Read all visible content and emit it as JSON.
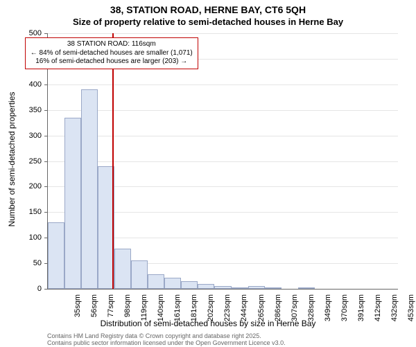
{
  "title_main": "38, STATION ROAD, HERNE BAY, CT6 5QH",
  "title_sub": "Size of property relative to semi-detached houses in Herne Bay",
  "ylabel": "Number of semi-detached properties",
  "xlabel": "Distribution of semi-detached houses by size in Herne Bay",
  "attribution_line1": "Contains HM Land Registry data © Crown copyright and database right 2025.",
  "attribution_line2": "Contains public sector information licensed under the Open Government Licence v3.0.",
  "annotation": {
    "line1": "38 STATION ROAD: 116sqm",
    "line2": "← 84% of semi-detached houses are smaller (1,071)",
    "line3": "16% of semi-detached houses are larger (203) →",
    "ref_value": 116,
    "border_color": "#c00000"
  },
  "chart": {
    "type": "histogram",
    "ylim": [
      0,
      500
    ],
    "ytick_step": 50,
    "bar_fill": "#dbe4f3",
    "bar_border": "#9aa8c7",
    "grid_color": "#e5e5e5",
    "background_color": "#ffffff",
    "axis_color": "#666666",
    "x_start": 35,
    "x_step": 21,
    "x_count": 21,
    "x_labels": [
      "35sqm",
      "56sqm",
      "77sqm",
      "98sqm",
      "119sqm",
      "140sqm",
      "161sqm",
      "181sqm",
      "202sqm",
      "223sqm",
      "244sqm",
      "265sqm",
      "286sqm",
      "307sqm",
      "328sqm",
      "349sqm",
      "370sqm",
      "391sqm",
      "412sqm",
      "432sqm",
      "453sqm"
    ],
    "values": [
      130,
      335,
      390,
      240,
      78,
      55,
      28,
      22,
      15,
      10,
      5,
      3,
      6,
      3,
      0,
      3,
      0,
      0,
      0,
      0,
      0
    ]
  }
}
